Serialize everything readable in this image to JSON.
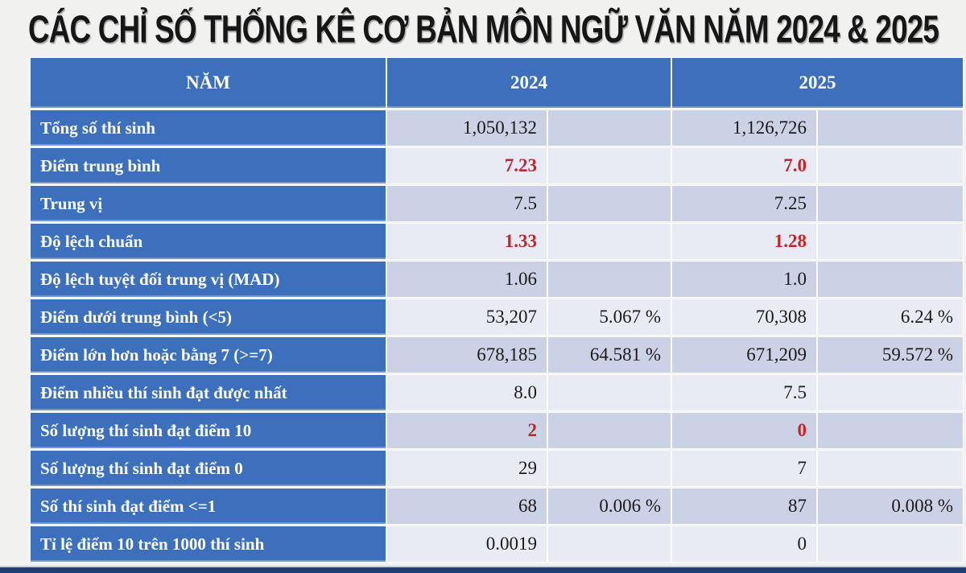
{
  "chart_data": {
    "type": "table",
    "title": "CÁC CHỈ SỐ THỐNG KÊ CƠ BẢN MÔN NGỮ VĂN NĂM 2024 & 2025",
    "header": {
      "label": "NĂM",
      "year_2024": "2024",
      "year_2025": "2025"
    },
    "rows": [
      {
        "label": "Tổng số thí sinh",
        "v2024": "1,050,132",
        "p2024": "",
        "v2025": "1,126,726",
        "p2025": "",
        "red": false
      },
      {
        "label": "Điểm trung bình",
        "v2024": "7.23",
        "p2024": "",
        "v2025": "7.0",
        "p2025": "",
        "red": true
      },
      {
        "label": "Trung vị",
        "v2024": "7.5",
        "p2024": "",
        "v2025": "7.25",
        "p2025": "",
        "red": false
      },
      {
        "label": "Độ lệch chuẩn",
        "v2024": "1.33",
        "p2024": "",
        "v2025": "1.28",
        "p2025": "",
        "red": true
      },
      {
        "label": "Độ lệch tuyệt đối trung vị (MAD)",
        "v2024": "1.06",
        "p2024": "",
        "v2025": "1.0",
        "p2025": "",
        "red": false
      },
      {
        "label": "Điểm dưới trung bình (<5)",
        "v2024": "53,207",
        "p2024": "5.067 %",
        "v2025": "70,308",
        "p2025": "6.24 %",
        "red": false
      },
      {
        "label": "Điểm lớn hơn hoặc bằng 7 (>=7)",
        "v2024": "678,185",
        "p2024": "64.581 %",
        "v2025": "671,209",
        "p2025": "59.572 %",
        "red": false
      },
      {
        "label": "Điểm nhiều thí sinh đạt được nhất",
        "v2024": "8.0",
        "p2024": "",
        "v2025": "7.5",
        "p2025": "",
        "red": false
      },
      {
        "label": "Số lượng thí sinh đạt điểm 10",
        "v2024": "2",
        "p2024": "",
        "v2025": "0",
        "p2025": "",
        "red": true
      },
      {
        "label": "Số lượng thí sinh đạt điểm 0",
        "v2024": "29",
        "p2024": "",
        "v2025": "7",
        "p2025": "",
        "red": false
      },
      {
        "label": "Số thí sinh đạt điểm <=1",
        "v2024": "68",
        "p2024": "0.006 %",
        "v2025": "87",
        "p2025": "0.008 %",
        "red": false
      },
      {
        "label": "Tỉ lệ điểm 10 trên 1000 thí sinh",
        "v2024": "0.0019",
        "p2024": "",
        "v2025": "0",
        "p2025": "",
        "red": false
      }
    ]
  },
  "colors": {
    "header_blue": "#3d70bc",
    "band_dark": "#ccd2e5",
    "band_light": "#e9ebf4",
    "highlight_red": "#c0272c",
    "footer_navy": "#1e3e75",
    "page_bg": "#f1f1ef"
  }
}
